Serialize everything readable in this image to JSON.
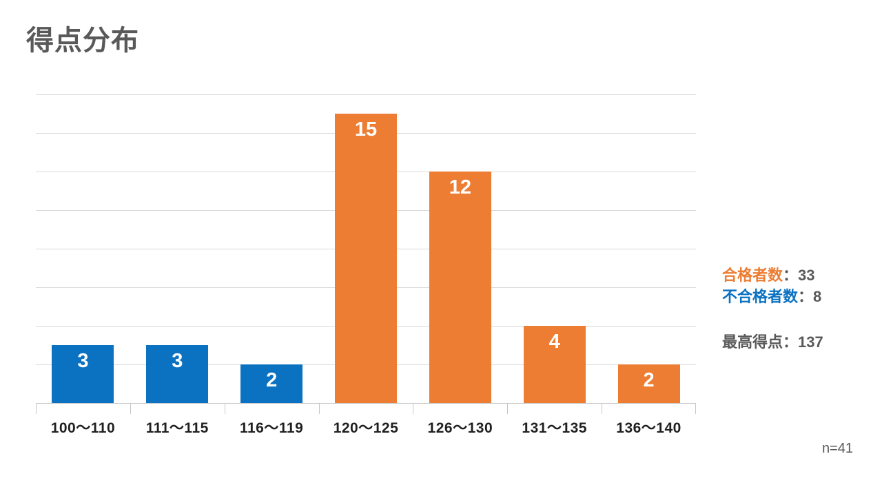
{
  "title": "得点分布",
  "chart_data": {
    "type": "bar",
    "title": "得点分布",
    "categories": [
      "100～110",
      "111～115",
      "116～119",
      "120～125",
      "126～130",
      "131～135",
      "136～140"
    ],
    "values": [
      3,
      3,
      2,
      15,
      12,
      4,
      2
    ],
    "bar_colors": [
      "#0b72c1",
      "#0b72c1",
      "#0b72c1",
      "#ec7d33",
      "#ec7d33",
      "#ec7d33",
      "#ec7d33"
    ],
    "xlabel": "",
    "ylabel": "",
    "ylim": [
      0,
      16
    ],
    "gridline_interval": 2,
    "grid": true,
    "legend_position": "none",
    "data_labels": "inside-end-white"
  },
  "stats": {
    "pass_label": "合格者数",
    "pass_value": "：33",
    "fail_label": "不合格者数",
    "fail_value": "：8",
    "max_label": "最高得点",
    "max_value": "：137"
  },
  "footnote": "n=41",
  "colors": {
    "blue": "#0b72c1",
    "orange": "#ec7d33",
    "title_gray": "#595959",
    "gridline": "#d9d9d9",
    "axis_label": "#1f1f1f"
  }
}
